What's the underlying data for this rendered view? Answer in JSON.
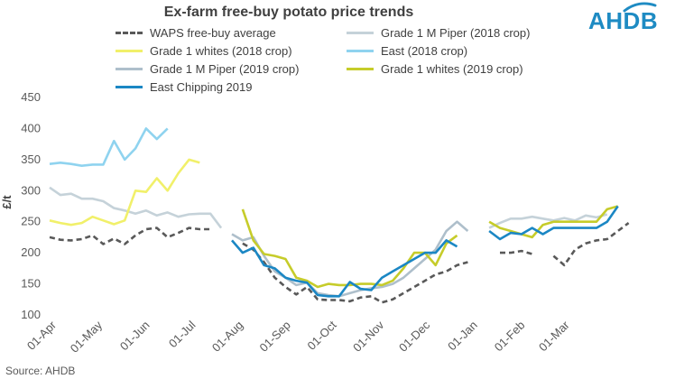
{
  "chart_data": {
    "type": "line",
    "title": "Ex-farm free-buy potato price trends",
    "ylabel": "£/t",
    "ylim": [
      100,
      450
    ],
    "yticks": [
      100,
      150,
      200,
      250,
      300,
      350,
      400,
      450
    ],
    "grid": false,
    "legend_position": "top",
    "x_tick_labels": [
      "01-Apr",
      "01-May",
      "01-Jun",
      "01-Jul",
      "01-Aug",
      "01-Sep",
      "01-Oct",
      "01-Nov",
      "01-Dec",
      "01-Jan",
      "01-Feb",
      "01-Mar"
    ],
    "series": [
      {
        "name": "WAPS free-buy average",
        "color": "#595959",
        "dashed": true,
        "points": [
          [
            "2019-04-01",
            225
          ],
          [
            "2019-04-08",
            221
          ],
          [
            "2019-04-15",
            220
          ],
          [
            "2019-04-22",
            222
          ],
          [
            "2019-04-29",
            228
          ],
          [
            "2019-05-06",
            214
          ],
          [
            "2019-05-13",
            223
          ],
          [
            "2019-05-20",
            214
          ],
          [
            "2019-05-27",
            228
          ],
          [
            "2019-06-03",
            238
          ],
          [
            "2019-06-10",
            240
          ],
          [
            "2019-06-17",
            225
          ],
          [
            "2019-06-24",
            232
          ],
          [
            "2019-07-01",
            240
          ],
          [
            "2019-07-08",
            238
          ],
          [
            "2019-07-15",
            238
          ],
          null,
          [
            "2019-08-05",
            215
          ],
          [
            "2019-08-12",
            205
          ],
          [
            "2019-08-19",
            185
          ],
          [
            "2019-08-26",
            160
          ],
          [
            "2019-09-02",
            145
          ],
          [
            "2019-09-09",
            133
          ],
          [
            "2019-09-16",
            145
          ],
          [
            "2019-09-23",
            125
          ],
          [
            "2019-09-30",
            124
          ],
          [
            "2019-10-07",
            124
          ],
          [
            "2019-10-14",
            122
          ],
          [
            "2019-10-21",
            128
          ],
          [
            "2019-10-28",
            130
          ],
          [
            "2019-11-04",
            120
          ],
          [
            "2019-11-11",
            125
          ],
          [
            "2019-11-18",
            135
          ],
          [
            "2019-11-25",
            145
          ],
          [
            "2019-12-02",
            155
          ],
          [
            "2019-12-09",
            165
          ],
          [
            "2019-12-16",
            170
          ],
          [
            "2019-12-23",
            180
          ],
          [
            "2019-12-30",
            185
          ],
          null,
          [
            "2020-01-20",
            200
          ],
          [
            "2020-01-27",
            200
          ],
          [
            "2020-02-03",
            203
          ],
          [
            "2020-02-10",
            198
          ],
          null,
          [
            "2020-02-24",
            195
          ],
          [
            "2020-03-02",
            180
          ],
          [
            "2020-03-09",
            205
          ],
          [
            "2020-03-16",
            215
          ],
          [
            "2020-03-23",
            220
          ],
          [
            "2020-03-30",
            222
          ],
          [
            "2020-04-06",
            235
          ],
          [
            "2020-04-13",
            248
          ]
        ]
      },
      {
        "name": "Grade 1 M Piper (2018 crop)",
        "color": "#c5d2d9",
        "dashed": false,
        "points": [
          [
            "2019-04-01",
            305
          ],
          [
            "2019-04-08",
            293
          ],
          [
            "2019-04-15",
            295
          ],
          [
            "2019-04-22",
            287
          ],
          [
            "2019-04-29",
            287
          ],
          [
            "2019-05-06",
            283
          ],
          [
            "2019-05-13",
            272
          ],
          [
            "2019-05-20",
            268
          ],
          [
            "2019-05-27",
            263
          ],
          [
            "2019-06-03",
            268
          ],
          [
            "2019-06-10",
            260
          ],
          [
            "2019-06-17",
            265
          ],
          [
            "2019-06-24",
            258
          ],
          [
            "2019-07-01",
            262
          ],
          [
            "2019-07-08",
            263
          ],
          [
            "2019-07-15",
            263
          ],
          [
            "2019-07-22",
            240
          ],
          null,
          [
            "2020-01-13",
            240
          ],
          [
            "2020-01-20",
            248
          ],
          [
            "2020-01-27",
            255
          ],
          [
            "2020-02-03",
            255
          ],
          [
            "2020-02-10",
            258
          ],
          [
            "2020-02-17",
            255
          ],
          [
            "2020-02-24",
            252
          ],
          [
            "2020-03-02",
            256
          ],
          [
            "2020-03-09",
            252
          ],
          [
            "2020-03-16",
            260
          ],
          [
            "2020-03-23",
            257
          ],
          [
            "2020-03-30",
            262
          ]
        ]
      },
      {
        "name": "Grade 1 whites (2018 crop)",
        "color": "#f1f06a",
        "dashed": false,
        "points": [
          [
            "2019-04-01",
            252
          ],
          [
            "2019-04-08",
            248
          ],
          [
            "2019-04-15",
            245
          ],
          [
            "2019-04-22",
            248
          ],
          [
            "2019-04-29",
            258
          ],
          [
            "2019-05-06",
            252
          ],
          [
            "2019-05-13",
            246
          ],
          [
            "2019-05-20",
            252
          ],
          [
            "2019-05-27",
            300
          ],
          [
            "2019-06-03",
            298
          ],
          [
            "2019-06-10",
            320
          ],
          [
            "2019-06-17",
            300
          ],
          [
            "2019-06-24",
            328
          ],
          [
            "2019-07-01",
            350
          ],
          [
            "2019-07-08",
            345
          ]
        ]
      },
      {
        "name": "East (2018 crop)",
        "color": "#8fd3ef",
        "dashed": false,
        "points": [
          [
            "2019-04-01",
            343
          ],
          [
            "2019-04-08",
            345
          ],
          [
            "2019-04-15",
            343
          ],
          [
            "2019-04-22",
            340
          ],
          [
            "2019-04-29",
            342
          ],
          [
            "2019-05-06",
            342
          ],
          [
            "2019-05-13",
            380
          ],
          [
            "2019-05-20",
            350
          ],
          [
            "2019-05-27",
            368
          ],
          [
            "2019-06-03",
            400
          ],
          [
            "2019-06-10",
            383
          ],
          [
            "2019-06-17",
            400
          ]
        ]
      },
      {
        "name": "Grade 1 M Piper (2019 crop)",
        "color": "#aebfcb",
        "dashed": false,
        "points": [
          [
            "2019-07-29",
            230
          ],
          [
            "2019-08-05",
            220
          ],
          [
            "2019-08-12",
            225
          ],
          [
            "2019-08-19",
            195
          ],
          [
            "2019-08-26",
            170
          ],
          [
            "2019-09-02",
            160
          ],
          [
            "2019-09-09",
            148
          ],
          [
            "2019-09-16",
            152
          ],
          [
            "2019-09-23",
            135
          ],
          [
            "2019-09-30",
            132
          ],
          [
            "2019-10-07",
            130
          ],
          [
            "2019-10-14",
            135
          ],
          [
            "2019-10-21",
            140
          ],
          [
            "2019-10-28",
            143
          ],
          [
            "2019-11-04",
            145
          ],
          [
            "2019-11-11",
            150
          ],
          [
            "2019-11-18",
            160
          ],
          [
            "2019-11-25",
            175
          ],
          [
            "2019-12-02",
            190
          ],
          [
            "2019-12-09",
            205
          ],
          [
            "2019-12-16",
            235
          ],
          [
            "2019-12-23",
            250
          ],
          [
            "2019-12-30",
            235
          ]
        ]
      },
      {
        "name": "Grade 1 whites (2019 crop)",
        "color": "#c6cc2a",
        "dashed": false,
        "points": [
          [
            "2019-08-05",
            270
          ],
          [
            "2019-08-12",
            220
          ],
          [
            "2019-08-19",
            198
          ],
          [
            "2019-08-26",
            195
          ],
          [
            "2019-09-02",
            190
          ],
          [
            "2019-09-09",
            160
          ],
          [
            "2019-09-16",
            155
          ],
          [
            "2019-09-23",
            145
          ],
          [
            "2019-09-30",
            150
          ],
          [
            "2019-10-07",
            148
          ],
          [
            "2019-10-14",
            148
          ],
          [
            "2019-10-21",
            150
          ],
          [
            "2019-10-28",
            150
          ],
          [
            "2019-11-04",
            148
          ],
          [
            "2019-11-11",
            155
          ],
          [
            "2019-11-18",
            175
          ],
          [
            "2019-11-25",
            200
          ],
          [
            "2019-12-02",
            200
          ],
          [
            "2019-12-09",
            180
          ],
          [
            "2019-12-16",
            215
          ],
          [
            "2019-12-23",
            228
          ],
          null,
          [
            "2020-01-13",
            250
          ],
          [
            "2020-01-20",
            240
          ],
          [
            "2020-01-27",
            235
          ],
          [
            "2020-02-03",
            230
          ],
          [
            "2020-02-10",
            225
          ],
          [
            "2020-02-17",
            245
          ],
          [
            "2020-02-24",
            250
          ],
          [
            "2020-03-02",
            250
          ],
          [
            "2020-03-09",
            250
          ],
          [
            "2020-03-16",
            250
          ],
          [
            "2020-03-23",
            250
          ],
          [
            "2020-03-30",
            270
          ],
          [
            "2020-04-06",
            275
          ]
        ]
      },
      {
        "name": "East Chipping 2019",
        "color": "#1b87c4",
        "dashed": false,
        "points": [
          [
            "2019-07-29",
            220
          ],
          [
            "2019-08-05",
            200
          ],
          [
            "2019-08-12",
            208
          ],
          [
            "2019-08-19",
            180
          ],
          [
            "2019-08-26",
            175
          ],
          [
            "2019-09-02",
            160
          ],
          [
            "2019-09-09",
            155
          ],
          [
            "2019-09-16",
            152
          ],
          [
            "2019-09-23",
            132
          ],
          [
            "2019-09-30",
            130
          ],
          [
            "2019-10-07",
            130
          ],
          [
            "2019-10-14",
            153
          ],
          [
            "2019-10-21",
            142
          ],
          [
            "2019-10-28",
            140
          ],
          [
            "2019-11-04",
            160
          ],
          [
            "2019-11-11",
            170
          ],
          [
            "2019-11-18",
            180
          ],
          [
            "2019-11-25",
            190
          ],
          [
            "2019-12-02",
            200
          ],
          [
            "2019-12-09",
            200
          ],
          [
            "2019-12-16",
            220
          ],
          [
            "2019-12-23",
            210
          ],
          null,
          [
            "2020-01-13",
            235
          ],
          [
            "2020-01-20",
            222
          ],
          [
            "2020-01-27",
            232
          ],
          [
            "2020-02-03",
            230
          ],
          [
            "2020-02-10",
            240
          ],
          [
            "2020-02-17",
            230
          ],
          [
            "2020-02-24",
            240
          ],
          [
            "2020-03-02",
            240
          ],
          [
            "2020-03-09",
            240
          ],
          [
            "2020-03-16",
            240
          ],
          [
            "2020-03-23",
            240
          ],
          [
            "2020-03-30",
            250
          ],
          [
            "2020-04-06",
            275
          ]
        ]
      }
    ]
  },
  "source_text": "Source: AHDB",
  "logo_text": "AHDB",
  "logo_color": "#1e8bc3"
}
